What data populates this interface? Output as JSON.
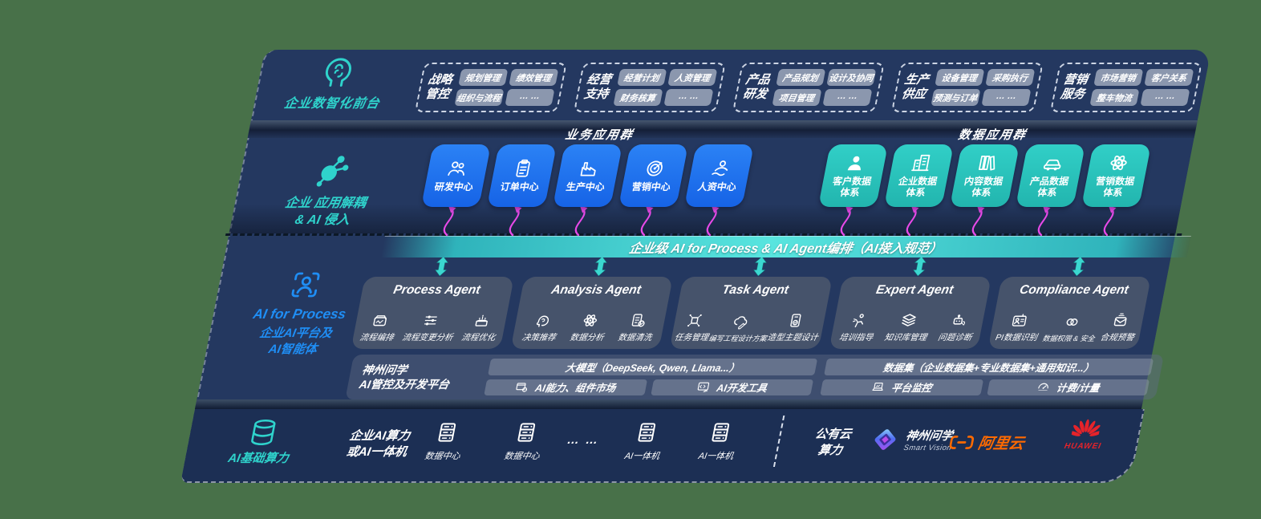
{
  "colors": {
    "background": "#487149",
    "panel": "#243860",
    "panel_dark": "#1c2f54",
    "accent_teal": "#2fd3cc",
    "accent_blue": "#1f8ef5",
    "tile_blue": "#1d72f0",
    "tile_teal": "#2cc6bf",
    "arrow_magenta": "#e84ae8",
    "orchestration_teal": "#58e5df",
    "alibaba_orange": "#ff6a00",
    "huawei_red": "#e6232a"
  },
  "front_office": {
    "label": "企业数智化前台",
    "icon": "brain-head-icon",
    "groups": [
      {
        "title": "战略管控",
        "chips": [
          "规划管理",
          "绩效管理",
          "组织与流程",
          "… …"
        ]
      },
      {
        "title": "经营支持",
        "chips": [
          "经营计划",
          "人资管理",
          "财务核算",
          "… …"
        ]
      },
      {
        "title": "产品研发",
        "chips": [
          "产品规划",
          "设计及协同",
          "项目管理",
          "… …"
        ]
      },
      {
        "title": "生产供应",
        "chips": [
          "设备管理",
          "采购执行",
          "预测与订单",
          "… …"
        ]
      },
      {
        "title": "营销服务",
        "chips": [
          "市场营销",
          "客户关系",
          "整车物流",
          "… …"
        ]
      }
    ]
  },
  "app_layer": {
    "label_line1": "企业 应用解耦",
    "label_line2": "& AI 侵入",
    "icon": "molecule-icon",
    "business": {
      "title": "业务应用群",
      "tiles": [
        {
          "label": "研发中心",
          "icon": "people-icon"
        },
        {
          "label": "订单中心",
          "icon": "clipboard-icon"
        },
        {
          "label": "生产中心",
          "icon": "factory-icon"
        },
        {
          "label": "营销中心",
          "icon": "target-icon"
        },
        {
          "label": "人资中心",
          "icon": "person-wave-icon"
        }
      ]
    },
    "data": {
      "title": "数据应用群",
      "tiles": [
        {
          "label": "客户数据体系",
          "icon": "user-icon"
        },
        {
          "label": "企业数据体系",
          "icon": "building-icon"
        },
        {
          "label": "内容数据体系",
          "icon": "books-icon"
        },
        {
          "label": "产品数据体系",
          "icon": "car-icon"
        },
        {
          "label": "营销数据体系",
          "icon": "atom-icon"
        }
      ]
    }
  },
  "ai_layer": {
    "icon": "person-scan-icon",
    "label_title": "AI for Process",
    "label_sub1": "企业AI平台及",
    "label_sub2": "AI智能体",
    "orchestration_bar": "企业级 AI for Process & AI Agent编排（AI接入规范）",
    "agents": [
      {
        "name": "Process Agent",
        "items": [
          {
            "label": "流程编排",
            "icon": "flow-box-icon"
          },
          {
            "label": "流程变更分析",
            "icon": "sliders-icon"
          },
          {
            "label": "流程优化",
            "icon": "layers-cake-icon"
          }
        ]
      },
      {
        "name": "Analysis Agent",
        "items": [
          {
            "label": "决策推荐",
            "icon": "head-idea-icon"
          },
          {
            "label": "数据分析",
            "icon": "atom-icon"
          },
          {
            "label": "数据清洗",
            "icon": "doc-check-icon"
          }
        ]
      },
      {
        "name": "Task Agent",
        "items": [
          {
            "label": "任务管理",
            "icon": "grid-dots-icon"
          },
          {
            "label": "编写工程设计方案",
            "icon": "cloud-pen-icon"
          },
          {
            "label": "造型主题设计",
            "icon": "tablet-check-icon"
          }
        ]
      },
      {
        "name": "Expert Agent",
        "items": [
          {
            "label": "培训指导",
            "icon": "training-icon"
          },
          {
            "label": "知识库管理",
            "icon": "stack-icon"
          },
          {
            "label": "问题诊断",
            "icon": "bot-wrench-icon"
          }
        ]
      },
      {
        "name": "Compliance Agent",
        "items": [
          {
            "label": "PI数据识别",
            "icon": "id-card-icon"
          },
          {
            "label": "数据权限 & 安全",
            "icon": "rings-icon"
          },
          {
            "label": "合规预警",
            "icon": "mail-alert-icon"
          }
        ]
      }
    ],
    "platform": {
      "label_line1": "神州问学",
      "label_line2": "AI管控及开发平台",
      "model_bar": "大模型（DeepSeek, Qwen, Llama...）",
      "dataset_bar": "数据集（企业数据集+专业数据集+通用知识...）",
      "cells": [
        {
          "label": "AI能力、组件市场",
          "icon": "market-icon"
        },
        {
          "label": "AI开发工具",
          "icon": "devtools-icon"
        },
        {
          "label": "平台监控",
          "icon": "monitor-icon"
        },
        {
          "label": "计费/计量",
          "icon": "gauge-icon"
        }
      ]
    }
  },
  "infra": {
    "label": "AI基础算力",
    "icon": "database-icon",
    "compute_label_line1": "企业AI算力",
    "compute_label_line2": "或AI一体机",
    "nodes": [
      {
        "label": "数据中心",
        "icon": "server-icon"
      },
      {
        "label": "数据中心",
        "icon": "server-icon"
      },
      {
        "label": "… …",
        "icon": null
      },
      {
        "label": "AI一体机",
        "icon": "server-icon"
      },
      {
        "label": "AI一体机",
        "icon": "server-icon"
      }
    ],
    "public_cloud_line1": "公有云",
    "public_cloud_line2": "算力",
    "vendors": [
      {
        "name": "神州问学",
        "sub": "Smart Vision",
        "icon": "smartvision-logo"
      },
      {
        "name": "阿里云",
        "icon": "alicloud-logo"
      },
      {
        "name": "HUAWEI",
        "icon": "huawei-logo"
      }
    ]
  }
}
